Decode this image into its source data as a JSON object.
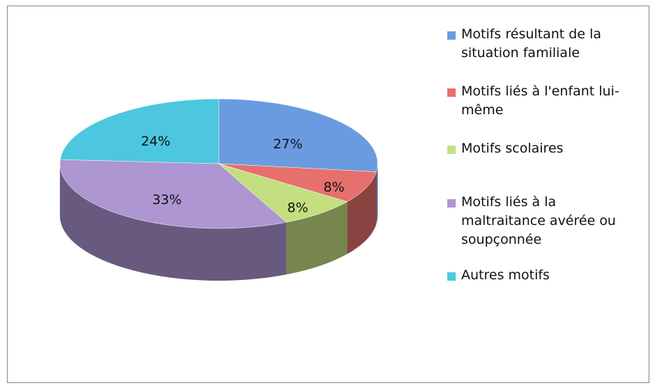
{
  "chart_data": {
    "type": "pie3d",
    "categories": [
      "Motifs résultant de la situation familiale",
      "Motifs liés à l'enfant lui-même",
      "Motifs scolaires",
      "Motifs liés à la maltraitance avérée ou soupçonnée",
      "Autres motifs"
    ],
    "values": [
      27,
      8,
      8,
      33,
      24
    ],
    "value_labels": [
      "27%",
      "8%",
      "8%",
      "33%",
      "24%"
    ],
    "colors": [
      "#6a9be0",
      "#e6706c",
      "#c4df80",
      "#ad96d2",
      "#4cc7df"
    ],
    "legend": "right"
  }
}
